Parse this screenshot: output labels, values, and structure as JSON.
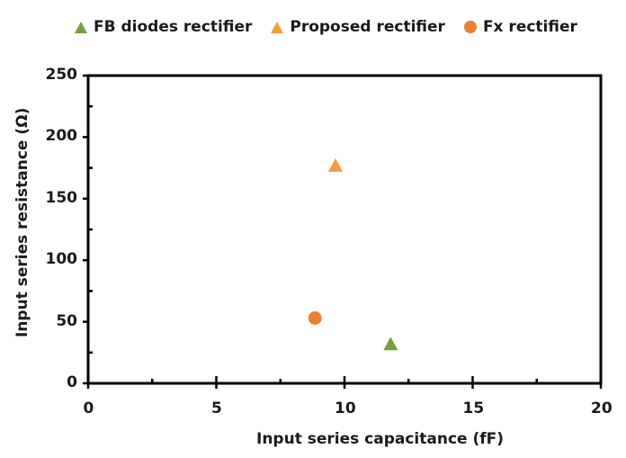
{
  "chart_data": {
    "type": "scatter",
    "title": "",
    "xlabel": "Input series capacitance (fF)",
    "ylabel": "Input series resistance (Ω)",
    "xlim": [
      0,
      20
    ],
    "ylim": [
      0,
      250
    ],
    "x_ticks": [
      "0",
      "5",
      "10",
      "15",
      "20"
    ],
    "y_ticks": [
      "0",
      "50",
      "100",
      "150",
      "200",
      "250"
    ],
    "grid": false,
    "legend_position": "top",
    "series": [
      {
        "name": "FB diodes rectifier",
        "marker": "triangle",
        "color": "#70a040",
        "points": [
          {
            "x": 11.8,
            "y": 32
          }
        ]
      },
      {
        "name": "Proposed rectifier",
        "marker": "triangle",
        "color": "#f79a3c",
        "points": [
          {
            "x": 9.65,
            "y": 177
          }
        ]
      },
      {
        "name": "Fx rectifier",
        "marker": "circle",
        "color": "#ec7f32",
        "points": [
          {
            "x": 8.85,
            "y": 53
          }
        ]
      }
    ]
  }
}
